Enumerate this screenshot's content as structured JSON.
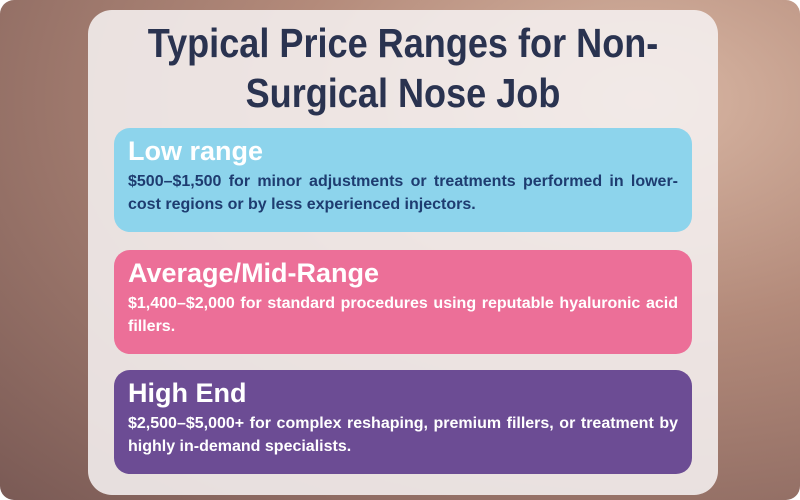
{
  "title": "Typical Price Ranges for Non-Surgical Nose Job",
  "cards": [
    {
      "heading": "Low range",
      "text": "$500–$1,500 for minor adjustments or treatments performed in lower-cost regions or by less experienced injectors."
    },
    {
      "heading": "Average/Mid-Range",
      "text": "$1,400–$2,000 for standard procedures using reputable hyaluronic acid fillers."
    },
    {
      "heading": "High End",
      "text": "$2,500–$5,000+ for complex reshaping, premium fillers, or treatment by highly in-demand specialists."
    }
  ]
}
